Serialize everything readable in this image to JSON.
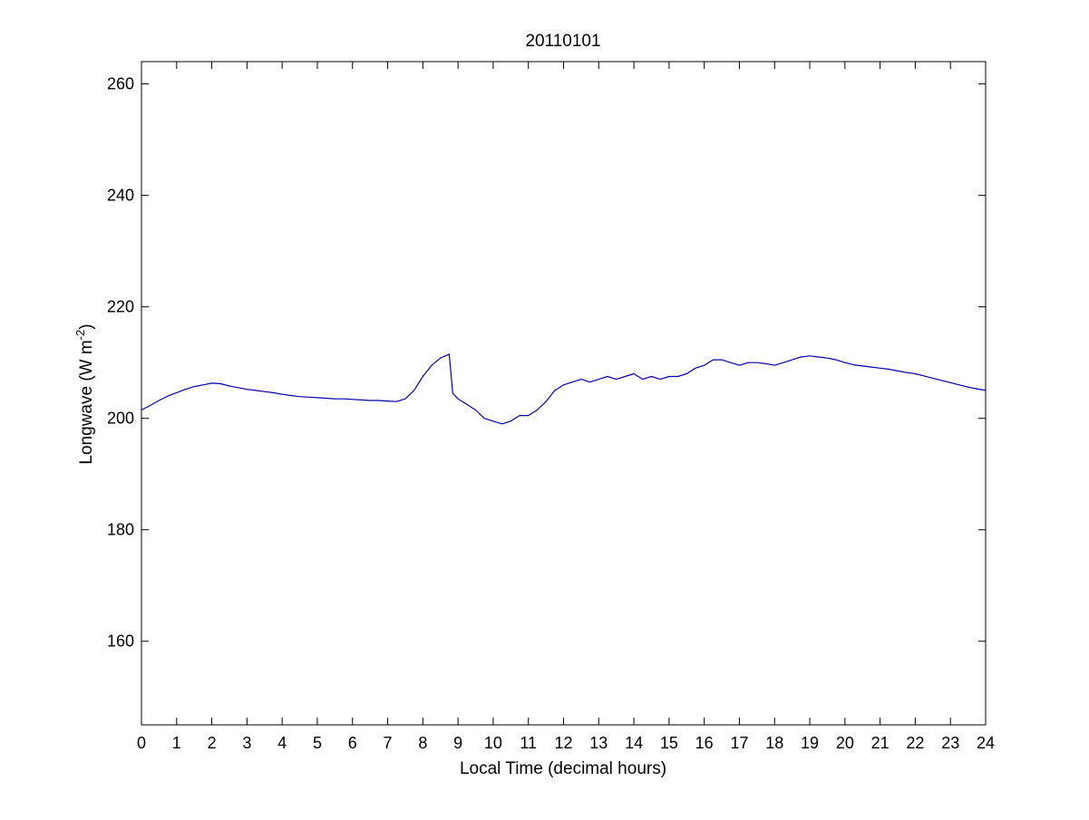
{
  "chart_data": {
    "type": "line",
    "title": "20110101",
    "xlabel": "Local Time (decimal hours)",
    "ylabel_main": "Longwave (W m",
    "ylabel_sup": "-2",
    "ylabel_close": ")",
    "xlim": [
      0,
      24
    ],
    "ylim": [
      145,
      264
    ],
    "xticks": [
      0,
      1,
      2,
      3,
      4,
      5,
      6,
      7,
      8,
      9,
      10,
      11,
      12,
      13,
      14,
      15,
      16,
      17,
      18,
      19,
      20,
      21,
      22,
      23,
      24
    ],
    "yticks": [
      160,
      180,
      200,
      220,
      240,
      260
    ],
    "grid": false,
    "line_color": "#0000aa",
    "series": [
      {
        "x": [
          0,
          0.25,
          0.5,
          0.75,
          1,
          1.25,
          1.5,
          1.75,
          2,
          2.25,
          2.5,
          2.75,
          3,
          3.25,
          3.5,
          3.75,
          4,
          4.25,
          4.5,
          4.75,
          5,
          5.25,
          5.5,
          5.75,
          6,
          6.25,
          6.5,
          6.75,
          7,
          7.25,
          7.5,
          7.75,
          8,
          8.25,
          8.5,
          8.75,
          8.85,
          9,
          9.25,
          9.5,
          9.75,
          10,
          10.25,
          10.5,
          10.75,
          11,
          11.25,
          11.5,
          11.75,
          12,
          12.25,
          12.5,
          12.75,
          13,
          13.25,
          13.5,
          13.75,
          14,
          14.25,
          14.5,
          14.75,
          15,
          15.25,
          15.5,
          15.75,
          16,
          16.25,
          16.5,
          16.75,
          17,
          17.25,
          17.5,
          17.75,
          18,
          18.25,
          18.5,
          18.75,
          19,
          19.25,
          19.5,
          19.75,
          20,
          20.25,
          20.5,
          20.75,
          21,
          21.25,
          21.5,
          21.75,
          22,
          22.25,
          22.5,
          22.75,
          23,
          23.25,
          23.5,
          23.75,
          24
        ],
        "y": [
          201.5,
          202.3,
          203.2,
          204.0,
          204.6,
          205.2,
          205.7,
          206.0,
          206.3,
          206.2,
          205.8,
          205.5,
          205.2,
          205.0,
          204.8,
          204.6,
          204.3,
          204.1,
          203.9,
          203.8,
          203.7,
          203.6,
          203.5,
          203.5,
          203.4,
          203.3,
          203.2,
          203.2,
          203.1,
          203.0,
          203.5,
          205.0,
          207.5,
          209.5,
          210.8,
          211.5,
          204.5,
          203.5,
          202.5,
          201.5,
          200.0,
          199.5,
          199.0,
          199.5,
          200.5,
          200.5,
          201.5,
          203.0,
          205.0,
          206.0,
          206.5,
          207.0,
          206.5,
          207.0,
          207.5,
          207.0,
          207.5,
          208.0,
          207.0,
          207.5,
          207.0,
          207.5,
          207.5,
          208.0,
          209.0,
          209.5,
          210.5,
          210.5,
          210.0,
          209.5,
          210.0,
          210.0,
          209.8,
          209.5,
          210.0,
          210.5,
          211.0,
          211.2,
          211.0,
          210.8,
          210.5,
          210.0,
          209.6,
          209.4,
          209.2,
          209.0,
          208.8,
          208.5,
          208.2,
          208.0,
          207.6,
          207.2,
          206.8,
          206.4,
          206.0,
          205.6,
          205.3,
          205.0
        ]
      }
    ]
  }
}
